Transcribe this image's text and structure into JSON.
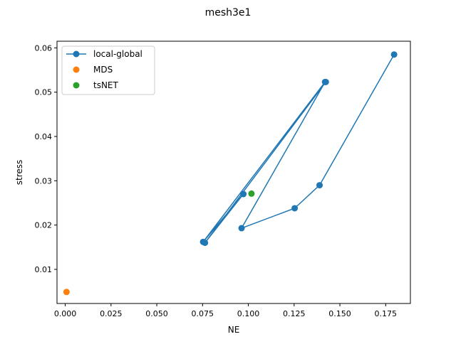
{
  "chart_data": {
    "type": "scatter",
    "title": "mesh3e1",
    "xlabel": "NE",
    "ylabel": "stress",
    "xlim": [
      -0.0045,
      0.1885
    ],
    "ylim": [
      0.0023,
      0.0615
    ],
    "xticks": [
      0.0,
      0.025,
      0.05,
      0.075,
      0.1,
      0.125,
      0.15,
      0.175
    ],
    "xtick_labels": [
      "0.000",
      "0.025",
      "0.050",
      "0.075",
      "0.100",
      "0.125",
      "0.150",
      "0.175"
    ],
    "yticks": [
      0.01,
      0.02,
      0.03,
      0.04,
      0.05,
      0.06
    ],
    "ytick_labels": [
      "0.01",
      "0.02",
      "0.03",
      "0.04",
      "0.05",
      "0.06"
    ],
    "grid": false,
    "legend_position": "upper left",
    "series": [
      {
        "name": "local-global",
        "style": "line-marker",
        "color": "#1f77b4",
        "points": [
          {
            "x": 0.1796,
            "y": 0.0585
          },
          {
            "x": 0.1389,
            "y": 0.029
          },
          {
            "x": 0.1253,
            "y": 0.0238
          },
          {
            "x": 0.0963,
            "y": 0.0193
          },
          {
            "x": 0.1419,
            "y": 0.0523
          },
          {
            "x": 0.0753,
            "y": 0.0162
          },
          {
            "x": 0.0973,
            "y": 0.027
          },
          {
            "x": 0.0763,
            "y": 0.016
          },
          {
            "x": 0.1423,
            "y": 0.0523
          }
        ]
      },
      {
        "name": "MDS",
        "style": "marker",
        "color": "#ff7f0e",
        "points": [
          {
            "x": 0.0007,
            "y": 0.0049
          }
        ]
      },
      {
        "name": "tsNET",
        "style": "marker",
        "color": "#2ca02c",
        "points": [
          {
            "x": 0.1017,
            "y": 0.0271
          }
        ]
      }
    ]
  }
}
